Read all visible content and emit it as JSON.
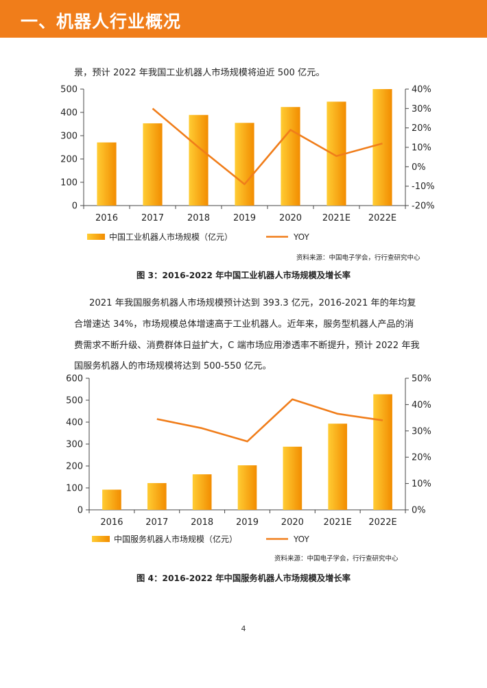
{
  "header": {
    "title": "一、机器人行业概况"
  },
  "para1": "景，预计 2022 年我国工业机器人市场规模将迫近 500 亿元。",
  "para2": [
    "2021 年我国服务机器人市场规模预计达到 393.3 亿元，2016-2021 年的年均复",
    "合增速达 34%，市场规模总体增速高于工业机器人。近年来，服务型机器人产品的消",
    "费需求不断升级、消费群体日益扩大，C 端市场应用渗透率不断提升，预计 2022 年我",
    "国服务机器人的市场规模将达到 500-550 亿元。"
  ],
  "page_number": "4",
  "colors": {
    "header": "#f07d1a",
    "bar_light": "#ffcc33",
    "bar_dark": "#f28c00",
    "line": "#f07d1a"
  },
  "chart_data": [
    {
      "type": "bar",
      "categories": [
        "2016",
        "2017",
        "2018",
        "2019",
        "2020",
        "2021E",
        "2022E"
      ],
      "series": [
        {
          "name": "中国工业机器人市场规模（亿元）",
          "kind": "bar",
          "axis": "left",
          "values": [
            271,
            353,
            389,
            355,
            423,
            446,
            500
          ]
        },
        {
          "name": "YOY",
          "kind": "line",
          "axis": "right",
          "values": [
            null,
            0.3,
            0.1,
            -0.09,
            0.19,
            0.055,
            0.12
          ]
        }
      ],
      "ylim": [
        0,
        500
      ],
      "yticks": [
        0,
        100,
        200,
        300,
        400,
        500
      ],
      "y2lim": [
        -0.2,
        0.4
      ],
      "y2ticks": [
        "-20%",
        "-10%",
        "0%",
        "10%",
        "20%",
        "30%",
        "40%"
      ],
      "source": "资料来源：中国电子学会，行行查研究中心",
      "caption": "图 3：2016-2022 年中国工业机器人市场规模及增长率",
      "legend": "bottom",
      "grid": false
    },
    {
      "type": "bar",
      "categories": [
        "2016",
        "2017",
        "2018",
        "2019",
        "2020",
        "2021E",
        "2022E"
      ],
      "series": [
        {
          "name": "中国服务机器人市场规模（亿元）",
          "kind": "bar",
          "axis": "left",
          "values": [
            92,
            122,
            162,
            203,
            288,
            393,
            527
          ]
        },
        {
          "name": "YOY",
          "kind": "line",
          "axis": "right",
          "values": [
            null,
            0.345,
            0.31,
            0.26,
            0.42,
            0.365,
            0.34
          ]
        }
      ],
      "ylim": [
        0,
        600
      ],
      "yticks": [
        0,
        100,
        200,
        300,
        400,
        500,
        600
      ],
      "y2lim": [
        0,
        0.5
      ],
      "y2ticks": [
        "0%",
        "10%",
        "20%",
        "30%",
        "40%",
        "50%"
      ],
      "source": "资料来源：中国电子学会，行行查研究中心",
      "caption": "图 4：2016-2022 年中国服务机器人市场规模及增长率",
      "legend": "bottom",
      "grid": false
    }
  ]
}
